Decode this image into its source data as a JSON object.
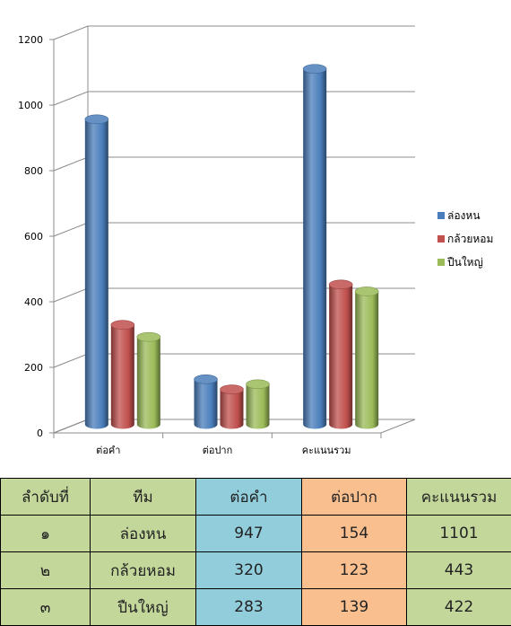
{
  "colors": {
    "series_1": "#4a7ebb",
    "series_2": "#c0504d",
    "series_3": "#9bbb59",
    "table_green": "#c3d79b",
    "table_blue": "#92cddc",
    "table_orange": "#fabf8f"
  },
  "chart_data": {
    "type": "bar",
    "title": "",
    "xlabel": "",
    "ylabel": "",
    "categories": [
      "ต่อคำ",
      "ต่อปาก",
      "คะแนนรวม"
    ],
    "series": [
      {
        "name": "ล่องหน",
        "values": [
          947,
          154,
          1101
        ]
      },
      {
        "name": "กล้วยหอม",
        "values": [
          320,
          123,
          443
        ]
      },
      {
        "name": "ปืนใหญ่",
        "values": [
          283,
          139,
          422
        ]
      }
    ],
    "ylim": [
      0,
      1200
    ],
    "yticks": [
      "0",
      "200",
      "400",
      "600",
      "800",
      "1000",
      "1200"
    ],
    "grid": true,
    "legend_position": "right",
    "style": "3d-cylinder"
  },
  "table": {
    "headers": [
      "ลำดับที่",
      "ทีม",
      "ต่อคำ",
      "ต่อปาก",
      "คะแนนรวม"
    ],
    "rows": [
      [
        "๑",
        "ล่องหน",
        "947",
        "154",
        "1101"
      ],
      [
        "๒",
        "กล้วยหอม",
        "320",
        "123",
        "443"
      ],
      [
        "๓",
        "ปืนใหญ่",
        "283",
        "139",
        "422"
      ]
    ]
  }
}
